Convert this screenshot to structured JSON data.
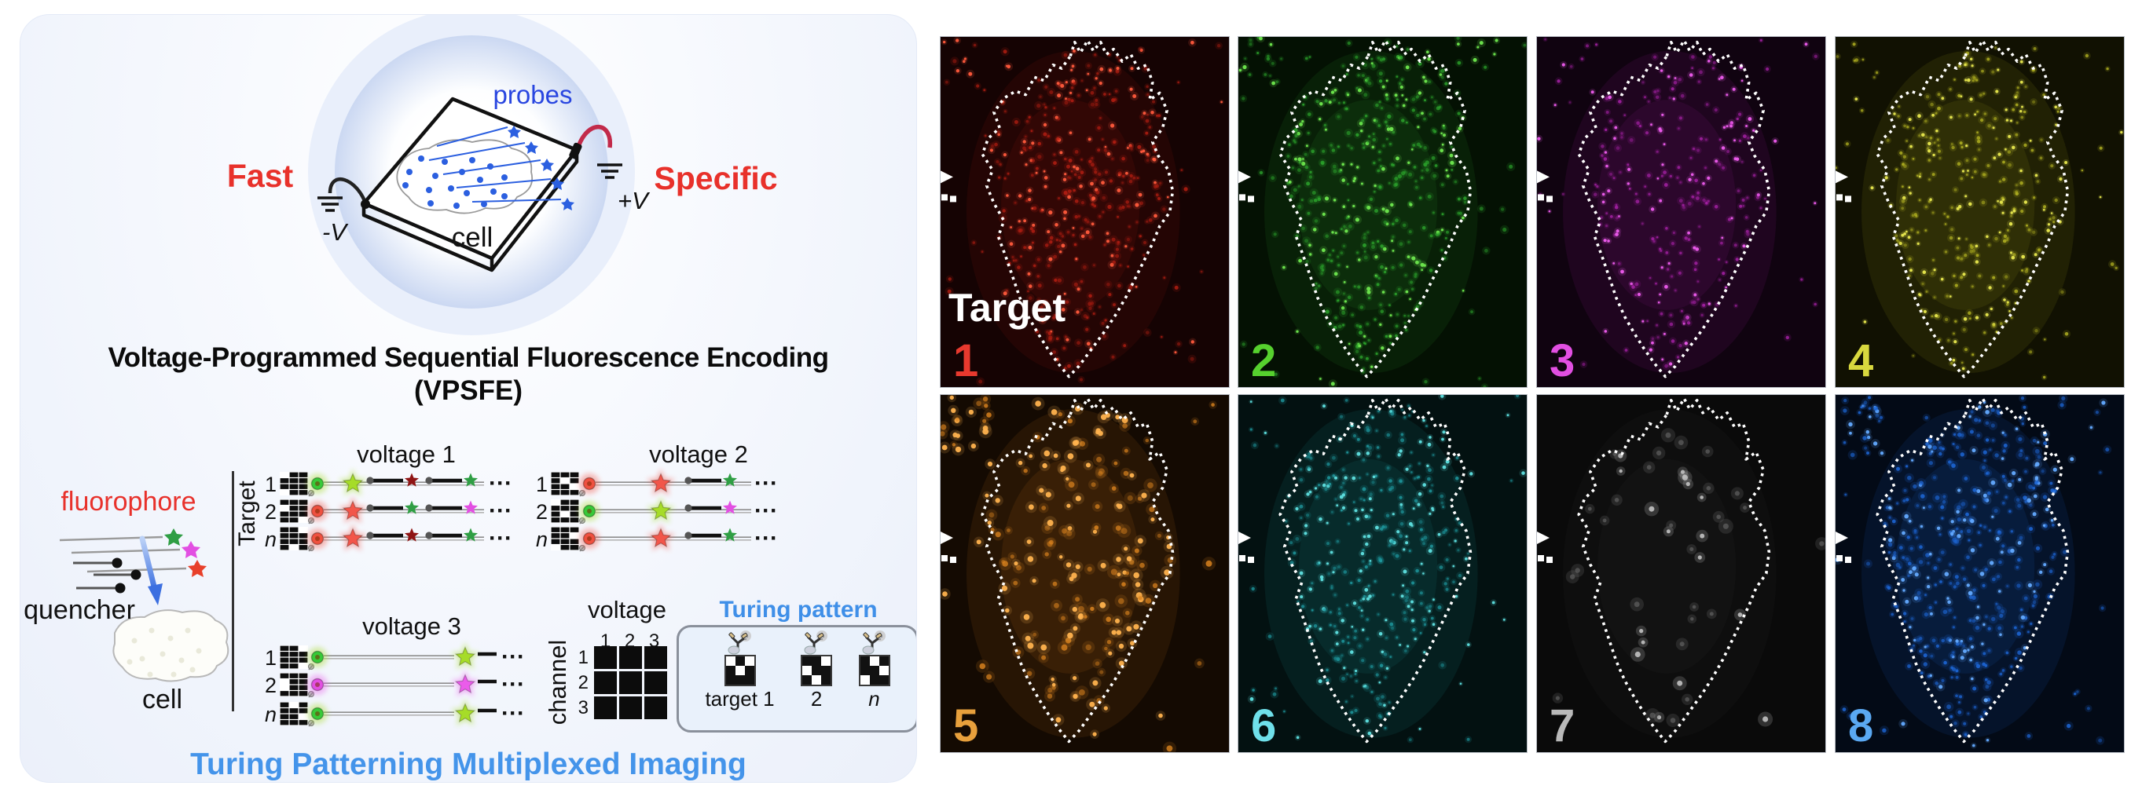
{
  "figure": {
    "left": {
      "fast": "Fast",
      "specific": "Specific",
      "chip": {
        "probes": "probes",
        "cell": "cell",
        "neg": "-V",
        "pos": "+V"
      },
      "title1": "Voltage-Programmed Sequential Fluorescence Encoding",
      "title2": "(VPSFE)",
      "legend": {
        "fluorophore": "fluorophore",
        "quencher": "quencher",
        "cell": "cell"
      },
      "target_axis": "Target",
      "ellipsis": "···",
      "row_colors": {
        "green": "#38c938",
        "green_glow": "#a6dc28",
        "red": "#ef5140",
        "red_glow": "#f2564a",
        "dark_red": "#8f1414",
        "forest_green": "#2f9e44",
        "magenta": "#e24fe2",
        "magenta_glow": "#ea5cea"
      },
      "groups": [
        {
          "title": "voltage 1",
          "rows": [
            {
              "label": "1",
              "barcode": "011111111011",
              "dot": "#38c938",
              "glow": "#a6dc28",
              "tail": [
                "#8f1414",
                "#2f9e44"
              ]
            },
            {
              "label": "2",
              "barcode": "111011111110",
              "dot": "#ef5140",
              "glow": "#f2564a",
              "tail": [
                "#2f9e44",
                "#e24fe2"
              ]
            },
            {
              "label": "n",
              "barcode": "110111111101",
              "dot": "#ef5140",
              "glow": "#f2564a",
              "tail": [
                "#8f1414",
                "#2f9e44"
              ]
            }
          ]
        },
        {
          "title": "voltage 2",
          "rows": [
            {
              "label": "1",
              "barcode": "111101110111",
              "dot": "#ef5140",
              "glow": "#f2564a",
              "tail": [
                "#2f9e44"
              ]
            },
            {
              "label": "2",
              "barcode": "011111101111",
              "dot": "#38c938",
              "glow": "#a6dc28",
              "tail": [
                "#e24fe2"
              ]
            },
            {
              "label": "n",
              "barcode": "111110111011",
              "dot": "#ef5140",
              "glow": "#f2564a",
              "tail": [
                "#2f9e44"
              ]
            }
          ]
        },
        {
          "title": "voltage 3",
          "rows": [
            {
              "label": "1",
              "barcode": "110111111110",
              "dot": "#38c938",
              "glow": "#a6dc28",
              "tail": []
            },
            {
              "label": "2",
              "barcode": "111011011111",
              "dot": "#e24fe2",
              "glow": "#ea5cea",
              "tail": []
            },
            {
              "label": "n",
              "barcode": "101111110111",
              "dot": "#38c938",
              "glow": "#a6dc28",
              "tail": []
            }
          ]
        }
      ],
      "matrix": {
        "voltage": "voltage",
        "channel": "channel",
        "cols": [
          "1",
          "2",
          "3"
        ],
        "rows": [
          "1",
          "2",
          "3"
        ]
      },
      "turing": {
        "title": "Turing pattern",
        "items": [
          {
            "label": "target 1",
            "pattern": "010101111"
          },
          {
            "label": "2",
            "pattern": "110011101"
          },
          {
            "label": "n",
            "pattern": "101110011"
          }
        ]
      },
      "footer": "Turing Patterning Multiplexed Imaging"
    },
    "right": {
      "target_label": "Target",
      "panels": [
        {
          "num": "1",
          "num_color": "#e8392e",
          "bg": "#150303",
          "dot": "#b41e12",
          "bright": "#ff5a3c",
          "count": 400,
          "r": [
            1.3,
            2.6
          ]
        },
        {
          "num": "2",
          "num_color": "#56d12e",
          "bg": "#041103",
          "dot": "#2da72d",
          "bright": "#6ee84e",
          "count": 440,
          "r": [
            1.3,
            2.6
          ]
        },
        {
          "num": "3",
          "num_color": "#e24fe2",
          "bg": "#100310",
          "dot": "#a822a8",
          "bright": "#ee5cee",
          "count": 270,
          "r": [
            1.3,
            2.4
          ]
        },
        {
          "num": "4",
          "num_color": "#d8d83e",
          "bg": "#111102",
          "dot": "#b4b422",
          "bright": "#e8e84e",
          "count": 340,
          "r": [
            1.3,
            2.4
          ]
        },
        {
          "num": "5",
          "num_color": "#e8a03c",
          "bg": "#140a02",
          "dot": "#d9821e",
          "bright": "#ffb24e",
          "count": 175,
          "r": [
            2.2,
            4.0
          ]
        },
        {
          "num": "6",
          "num_color": "#6fe0ea",
          "bg": "#031111",
          "dot": "#1f9aa0",
          "bright": "#5ee0e0",
          "count": 380,
          "r": [
            1.3,
            2.5
          ]
        },
        {
          "num": "7",
          "num_color": "#b9b9b9",
          "bg": "#0a0a0a",
          "dot": "#777777",
          "bright": "#bbbbbb",
          "count": 46,
          "r": [
            2.2,
            3.8
          ]
        },
        {
          "num": "8",
          "num_color": "#5aa8f2",
          "bg": "#030a16",
          "dot": "#1e6add",
          "bright": "#63aaff",
          "count": 420,
          "r": [
            1.5,
            2.9
          ]
        }
      ]
    }
  }
}
